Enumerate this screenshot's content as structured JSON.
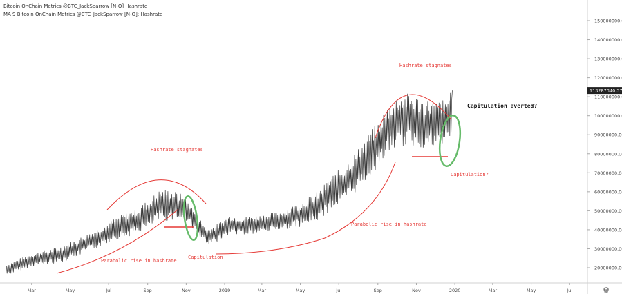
{
  "legend": {
    "line1": "Bitcoin OnChain Metrics @BTC_JackSparrow [N-O] Hashrate",
    "line2": "MA 9 Bitcoin OnChain Metrics @BTC_JackSparrow [N-O]: Hashrate"
  },
  "chart_data": {
    "type": "line",
    "series": [
      {
        "name": "Hashrate"
      }
    ],
    "x_tick_labels": [
      "Mar",
      "May",
      "Jul",
      "Sep",
      "Nov",
      "2019",
      "Mar",
      "May",
      "Jul",
      "Sep",
      "Nov",
      "2020",
      "Mar",
      "May",
      "Jul"
    ],
    "y_tick_labels": [
      "20000000.00",
      "30000000.00",
      "40000000.00",
      "50000000.00",
      "60000000.00",
      "70000000.00",
      "80000000.00",
      "90000000.00",
      "100000000.00",
      "110000000.00",
      "120000000.00",
      "130000000.00",
      "140000000.00",
      "150000000.00"
    ],
    "ylim": [
      13000000,
      155000000
    ],
    "last_value_label": "113287340.37",
    "anchors": [
      [
        "2018-01-20",
        19000000
      ],
      [
        "2018-03-01",
        24000000
      ],
      [
        "2018-04-15",
        27000000
      ],
      [
        "2018-05-15",
        31000000
      ],
      [
        "2018-06-15",
        36000000
      ],
      [
        "2018-07-15",
        41000000
      ],
      [
        "2018-08-10",
        44000000
      ],
      [
        "2018-09-01",
        48000000
      ],
      [
        "2018-09-20",
        53000000
      ],
      [
        "2018-10-10",
        53000000
      ],
      [
        "2018-10-25",
        52000000
      ],
      [
        "2018-11-05",
        49000000
      ],
      [
        "2018-11-20",
        42000000
      ],
      [
        "2018-12-05",
        36000000
      ],
      [
        "2018-12-20",
        38000000
      ],
      [
        "2019-01-10",
        43000000
      ],
      [
        "2019-02-01",
        42000000
      ],
      [
        "2019-03-01",
        43000000
      ],
      [
        "2019-04-01",
        45000000
      ],
      [
        "2019-05-01",
        48000000
      ],
      [
        "2019-06-01",
        53000000
      ],
      [
        "2019-06-20",
        60000000
      ],
      [
        "2019-07-10",
        64000000
      ],
      [
        "2019-08-01",
        72000000
      ],
      [
        "2019-08-20",
        80000000
      ],
      [
        "2019-09-01",
        85000000
      ],
      [
        "2019-09-15",
        92000000
      ],
      [
        "2019-10-01",
        97000000
      ],
      [
        "2019-10-20",
        98000000
      ],
      [
        "2019-11-10",
        96000000
      ],
      [
        "2019-12-01",
        95000000
      ],
      [
        "2019-12-20",
        97000000
      ],
      [
        "2019-12-28",
        105000000
      ]
    ],
    "amplitude": [
      [
        "2018-01-20",
        3000000
      ],
      [
        "2018-07-01",
        5500000
      ],
      [
        "2018-10-01",
        8500000
      ],
      [
        "2018-11-20",
        5000000
      ],
      [
        "2019-04-01",
        5000000
      ],
      [
        "2019-08-01",
        11000000
      ],
      [
        "2019-10-15",
        14000000
      ],
      [
        "2019-12-28",
        12000000
      ]
    ],
    "annotations": {
      "hashrate_stagnates_1": "Hashrate stagnates",
      "hashrate_stagnates_2": "Hashrate stagnates",
      "parabolic_1": "Parabolic rise in hashrate",
      "parabolic_2": "Parabolic rise in hashrate",
      "capitulation": "Capitulation",
      "capitulation_q": "Capitulation?",
      "capitulation_averted": "Capitulation averted?"
    },
    "colors": {
      "line": "#3a3a3a",
      "annotation_red": "#e53935",
      "circle_green": "#66bb6a",
      "price_label_bg": "#222222"
    }
  }
}
